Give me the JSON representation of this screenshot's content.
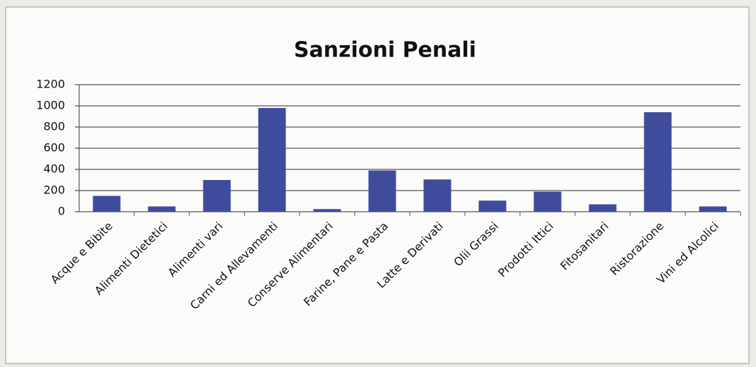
{
  "chart_data": {
    "type": "bar",
    "title": "Sanzioni Penali",
    "categories": [
      "Acque e Bibite",
      "Alimenti Dietetici",
      "Alimenti vari",
      "Carni ed Allevamenti",
      "Conserve Alimentari",
      "Farine, Pane e Pasta",
      "Latte e Derivati",
      "Olii Grassi",
      "Prodotti Ittici",
      "Fitosanitari",
      "Ristorazione",
      "Vini ed Alcolici"
    ],
    "values": [
      150,
      50,
      300,
      980,
      25,
      390,
      305,
      105,
      190,
      70,
      940,
      50
    ],
    "color": "#3f4c9c",
    "ylim": [
      0,
      1200
    ],
    "yticks": [
      0,
      200,
      400,
      600,
      800,
      1000,
      1200
    ],
    "grid": true
  }
}
